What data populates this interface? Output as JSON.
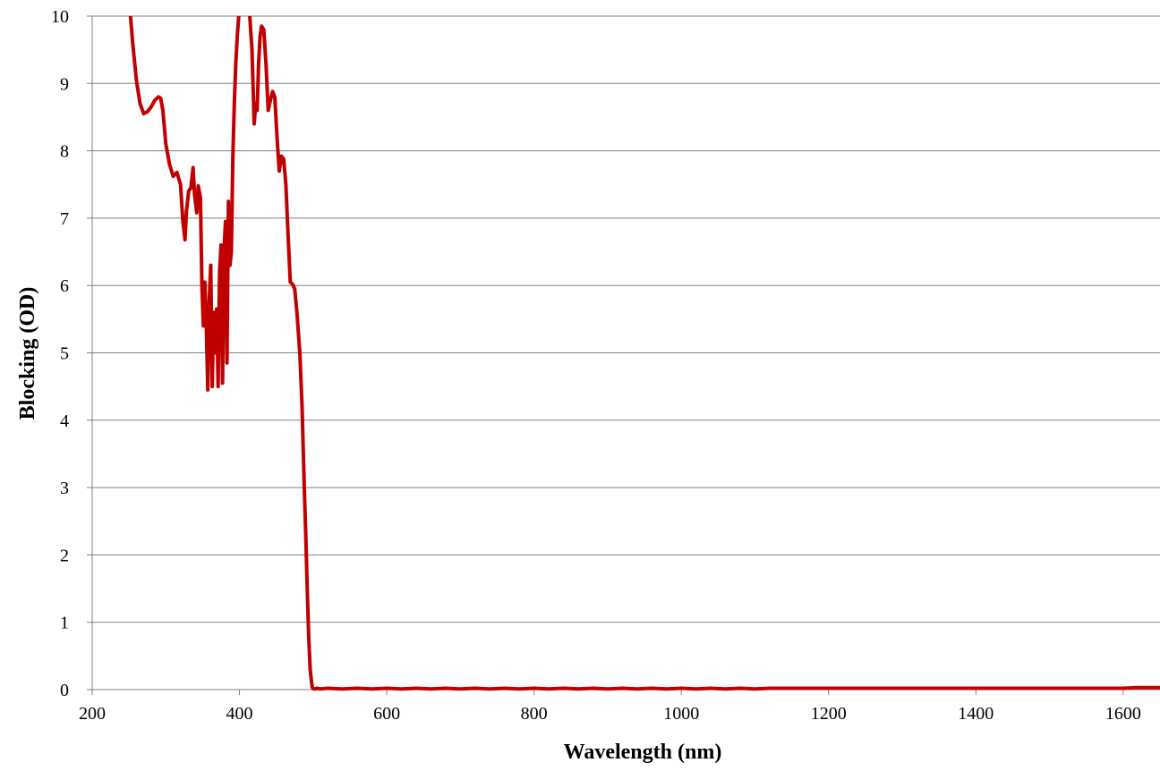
{
  "chart_data": {
    "type": "line",
    "title": "",
    "xlabel": "Wavelength (nm)",
    "ylabel": "Blocking (OD)",
    "xlim": [
      200,
      1650
    ],
    "ylim": [
      0,
      10
    ],
    "x_ticks": [
      "200",
      "400",
      "600",
      "800",
      "1000",
      "1200",
      "1400",
      "1600"
    ],
    "y_ticks": [
      "0",
      "1",
      "2",
      "3",
      "4",
      "5",
      "6",
      "7",
      "8",
      "9",
      "10"
    ],
    "grid": "horizontal",
    "legend": "none",
    "series_color": "#C00000",
    "grid_color": "#808080",
    "series": [
      {
        "x": [
          252,
          255,
          260,
          265,
          270,
          275,
          280,
          285,
          290,
          293,
          296,
          300,
          305,
          310,
          315,
          320,
          323,
          326,
          328,
          331,
          334,
          337,
          339,
          342,
          344,
          347,
          349,
          351,
          353,
          355,
          357,
          359,
          361,
          363,
          365,
          367,
          369,
          371,
          373,
          375,
          377,
          379,
          381,
          383,
          385,
          387,
          389,
          391,
          393,
          395,
          397,
          399,
          402,
          405,
          408,
          411,
          414,
          417,
          420,
          422,
          424,
          426,
          428,
          430,
          433,
          436,
          439,
          442,
          445,
          448,
          451,
          454,
          457,
          460,
          463,
          466,
          469,
          472,
          475,
          478,
          482,
          485,
          488,
          490,
          492,
          494,
          496,
          498,
          499,
          500,
          501,
          502,
          503,
          505,
          510,
          520,
          540,
          560,
          580,
          600,
          620,
          640,
          660,
          680,
          700,
          720,
          740,
          760,
          780,
          800,
          820,
          840,
          860,
          880,
          900,
          920,
          940,
          960,
          980,
          1000,
          1020,
          1040,
          1060,
          1080,
          1100,
          1120,
          1140,
          1160,
          1180,
          1200,
          1220,
          1240,
          1260,
          1280,
          1300,
          1320,
          1340,
          1360,
          1380,
          1400,
          1420,
          1440,
          1460,
          1480,
          1500,
          1520,
          1540,
          1560,
          1580,
          1600,
          1620,
          1650
        ],
        "y": [
          10.0,
          9.6,
          9.05,
          8.7,
          8.55,
          8.58,
          8.65,
          8.75,
          8.8,
          8.78,
          8.6,
          8.1,
          7.8,
          7.62,
          7.68,
          7.5,
          6.98,
          6.68,
          7.1,
          7.4,
          7.45,
          7.75,
          7.35,
          7.08,
          7.48,
          7.3,
          6.0,
          5.4,
          6.05,
          5.4,
          4.45,
          5.8,
          6.3,
          4.5,
          5.6,
          5.0,
          5.65,
          4.5,
          6.2,
          6.6,
          4.55,
          6.5,
          6.95,
          4.85,
          7.25,
          6.3,
          6.5,
          7.9,
          8.7,
          9.3,
          9.7,
          10.0,
          10.3,
          10.6,
          10.5,
          10.2,
          10.0,
          9.5,
          8.4,
          8.7,
          8.6,
          9.3,
          9.7,
          9.85,
          9.8,
          9.3,
          8.6,
          8.75,
          8.88,
          8.8,
          8.2,
          7.7,
          7.92,
          7.88,
          7.5,
          6.75,
          6.05,
          6.02,
          5.95,
          5.6,
          5.0,
          4.2,
          3.0,
          2.3,
          1.5,
          0.8,
          0.3,
          0.1,
          0.03,
          0.02,
          0.01,
          0.01,
          0.01,
          0.02,
          0.01,
          0.02,
          0.01,
          0.02,
          0.01,
          0.02,
          0.01,
          0.02,
          0.01,
          0.02,
          0.01,
          0.02,
          0.01,
          0.02,
          0.01,
          0.02,
          0.01,
          0.02,
          0.01,
          0.02,
          0.01,
          0.02,
          0.01,
          0.02,
          0.01,
          0.02,
          0.01,
          0.02,
          0.01,
          0.02,
          0.01,
          0.02,
          0.02,
          0.02,
          0.02,
          0.02,
          0.02,
          0.02,
          0.02,
          0.02,
          0.02,
          0.02,
          0.02,
          0.02,
          0.02,
          0.02,
          0.02,
          0.02,
          0.02,
          0.02,
          0.02,
          0.02,
          0.02,
          0.02,
          0.02,
          0.02,
          0.03,
          0.03
        ]
      }
    ]
  }
}
